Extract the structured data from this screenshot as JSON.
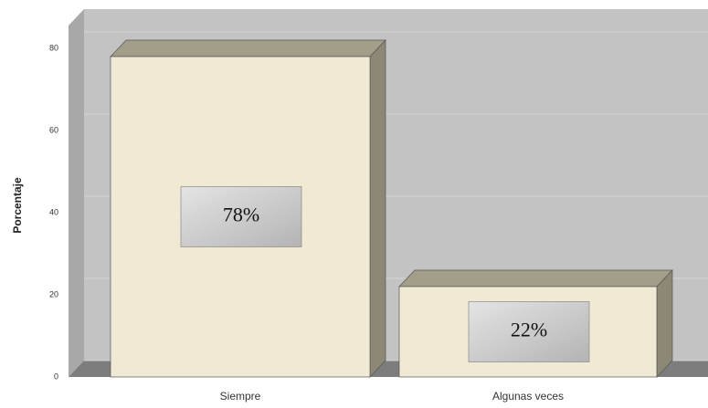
{
  "chart_data": {
    "type": "bar3d",
    "ylabel": "Porcentaje",
    "categories": [
      "Siempre",
      "Algunas veces"
    ],
    "values": [
      78,
      22
    ],
    "value_labels": [
      "78%",
      "22%"
    ],
    "ylim": [
      0,
      80
    ],
    "yticks": [
      0,
      20,
      40,
      60,
      80
    ],
    "grid": true,
    "color": "#f0e9d3"
  }
}
